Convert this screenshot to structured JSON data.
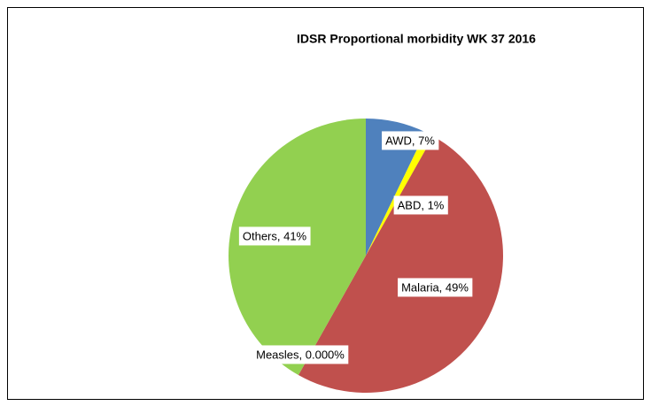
{
  "chart_data": {
    "type": "pie",
    "title": "IDSR Proportional morbidity WK 37 2016",
    "values": [
      7,
      1,
      49,
      0,
      41
    ],
    "value_labels": [
      "AWD, 7%",
      "ABD, 1%",
      "Malaria, 49%",
      "Measles, 0.000%",
      "Others, 41%"
    ],
    "colors": [
      "#4f81bd",
      "#ffff00",
      "#c0504d",
      "#8064a2",
      "#92d050"
    ]
  }
}
